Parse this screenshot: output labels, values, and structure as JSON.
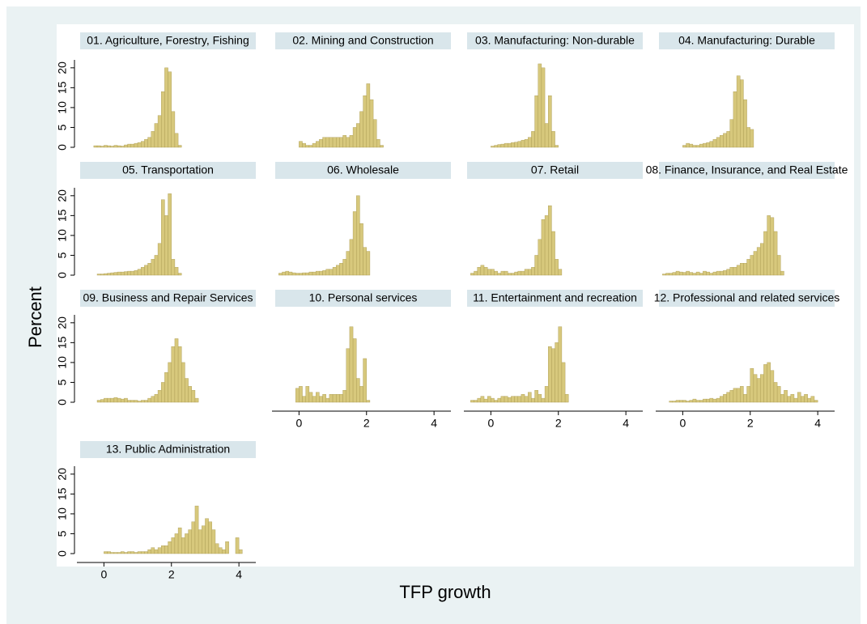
{
  "chart_data": {
    "type": "histogram",
    "xlabel": "TFP growth",
    "ylabel": "Percent",
    "color": "#d7c87c",
    "edgecolor": "#a8984f",
    "xlim": [
      -0.8,
      4.5
    ],
    "xticks": [
      0,
      2,
      4
    ],
    "ylim": [
      0,
      22
    ],
    "yticks": [
      0,
      5,
      10,
      15,
      20
    ],
    "bins": [
      -0.6,
      -0.5,
      -0.4,
      -0.3,
      -0.2,
      -0.1,
      0,
      0.1,
      0.2,
      0.3,
      0.4,
      0.5,
      0.6,
      0.7,
      0.8,
      0.9,
      1,
      1.1,
      1.2,
      1.3,
      1.4,
      1.5,
      1.6,
      1.7,
      1.8,
      1.9,
      2,
      2.1,
      2.2,
      2.3,
      2.4,
      2.5,
      2.6,
      2.7,
      2.8,
      2.9,
      3,
      3.1,
      3.2,
      3.3,
      3.4,
      3.5,
      3.6,
      3.7,
      3.8,
      3.9,
      4,
      4.1,
      4.2
    ],
    "panels": [
      {
        "title": "01. Agriculture, Forestry, Fishing",
        "values": [
          0,
          0,
          0,
          0.4,
          0.4,
          0.3,
          0.5,
          0.4,
          0.3,
          0.5,
          0.4,
          0.3,
          0.6,
          0.8,
          0.8,
          1,
          1.2,
          1.5,
          2,
          2.5,
          4,
          6,
          8,
          14,
          20,
          19,
          9,
          3.5,
          0.5,
          0,
          0,
          0,
          0,
          0,
          0,
          0,
          0,
          0,
          0,
          0,
          0,
          0,
          0,
          0,
          0,
          0,
          0,
          0
        ]
      },
      {
        "title": "02. Mining and Construction",
        "values": [
          0,
          0,
          0,
          0,
          0,
          0,
          1.5,
          1,
          0.5,
          0.5,
          1,
          1.5,
          2,
          2.5,
          2.5,
          2.5,
          2.5,
          2.5,
          2.5,
          3,
          2.5,
          3,
          5,
          6,
          9,
          13,
          16,
          12,
          7,
          2,
          0.5,
          0,
          0,
          0,
          0,
          0,
          0,
          0,
          0,
          0,
          0,
          0,
          0,
          0,
          0,
          0,
          0,
          0
        ]
      },
      {
        "title": "03. Manufacturing: Non-durable",
        "values": [
          0,
          0,
          0,
          0,
          0,
          0,
          0.3,
          0.5,
          0.7,
          0.8,
          1,
          1,
          1.2,
          1.3,
          1.5,
          1.8,
          2,
          2.5,
          4,
          13,
          21,
          20,
          6,
          13,
          4,
          0.5,
          0,
          0,
          0,
          0,
          0,
          0,
          0,
          0,
          0,
          0,
          0,
          0,
          0,
          0,
          0,
          0,
          0,
          0,
          0,
          0,
          0,
          0
        ]
      },
      {
        "title": "04. Manufacturing: Durable",
        "values": [
          0,
          0,
          0,
          0,
          0,
          0,
          0.5,
          1,
          0.8,
          0.5,
          0.5,
          0.8,
          1,
          1.2,
          1.5,
          2,
          2.5,
          3,
          3.5,
          4,
          7,
          14,
          18,
          17,
          12,
          5,
          4.5,
          0,
          0,
          0,
          0,
          0,
          0,
          0,
          0,
          0,
          0,
          0,
          0,
          0,
          0,
          0,
          0,
          0,
          0,
          0,
          0,
          0
        ]
      },
      {
        "title": "05. Transportation",
        "values": [
          0,
          0,
          0,
          0,
          0.3,
          0.3,
          0.4,
          0.5,
          0.6,
          0.7,
          0.8,
          0.8,
          0.9,
          1,
          1,
          1.2,
          1.5,
          2,
          2.5,
          3,
          4,
          5,
          8,
          19,
          15,
          20.5,
          4,
          2,
          0.5,
          0,
          0,
          0,
          0,
          0,
          0,
          0,
          0,
          0,
          0,
          0,
          0,
          0,
          0,
          0,
          0,
          0,
          0,
          0
        ]
      },
      {
        "title": "06. Wholesale",
        "values": [
          0.5,
          0.8,
          1,
          0.8,
          0.6,
          0.5,
          0.5,
          0.6,
          0.6,
          0.8,
          0.8,
          1,
          1,
          1.2,
          1.5,
          1.5,
          2,
          2.5,
          3,
          4,
          6,
          9,
          16,
          20,
          13,
          7,
          6,
          0,
          0,
          0,
          0,
          0,
          0,
          0,
          0,
          0,
          0,
          0,
          0,
          0,
          0,
          0,
          0,
          0,
          0,
          0,
          0,
          0
        ]
      },
      {
        "title": "07. Retail",
        "values": [
          0.5,
          1,
          2,
          2.5,
          2,
          1.5,
          1.5,
          1,
          0.5,
          1,
          1,
          0.5,
          0.5,
          0.8,
          1,
          1,
          1.5,
          1.5,
          2,
          5,
          9,
          14,
          15,
          17.5,
          11,
          4,
          1.5,
          0,
          0,
          0,
          0,
          0,
          0,
          0,
          0,
          0,
          0,
          0,
          0,
          0,
          0,
          0,
          0,
          0,
          0,
          0,
          0,
          0
        ]
      },
      {
        "title": "08. Finance, Insurance, and Real Estate",
        "values": [
          0.3,
          0.5,
          0.5,
          0.7,
          1,
          0.8,
          0.7,
          1,
          0.7,
          0.5,
          0.8,
          0.5,
          1,
          0.8,
          0.5,
          0.8,
          1,
          1,
          1.2,
          1.5,
          2,
          2,
          2.5,
          3,
          3,
          4,
          5,
          6,
          7,
          8,
          11,
          15,
          14.5,
          11,
          5,
          1,
          0,
          0,
          0,
          0,
          0,
          0,
          0,
          0,
          0,
          0,
          0,
          0
        ]
      },
      {
        "title": "09. Business and Repair Services",
        "values": [
          0,
          0,
          0,
          0,
          0.5,
          0.7,
          1,
          1,
          1,
          1.2,
          1,
          0.8,
          1,
          0.5,
          0.5,
          0.5,
          0.3,
          0.5,
          0.5,
          1,
          1.5,
          2,
          3,
          5,
          7.5,
          10,
          14,
          16,
          14,
          10,
          6,
          4,
          3,
          1,
          0,
          0,
          0,
          0,
          0,
          0,
          0,
          0,
          0,
          0,
          0,
          0,
          0,
          0
        ]
      },
      {
        "title": "10. Personal services",
        "values": [
          0,
          0,
          0,
          0,
          0,
          3.5,
          4,
          1.5,
          4,
          2.5,
          1.5,
          2.5,
          1.5,
          2,
          1,
          2,
          2,
          2,
          2,
          3,
          13.5,
          19,
          16,
          6,
          4,
          11,
          0.5,
          0,
          0,
          0,
          0,
          0,
          0,
          0,
          0,
          0,
          0,
          0,
          0,
          0,
          0,
          0,
          0,
          0,
          0,
          0,
          0,
          0
        ]
      },
      {
        "title": "11. Entertainment and recreation",
        "values": [
          0.5,
          0.5,
          1,
          1.5,
          0.8,
          1.5,
          1,
          0.5,
          1,
          1.5,
          1.5,
          1.2,
          1.5,
          1.5,
          1.5,
          2,
          1.5,
          2.5,
          1,
          3,
          2,
          1,
          4,
          14,
          13.5,
          15,
          19,
          10,
          2,
          0,
          0,
          0,
          0,
          0,
          0,
          0,
          0,
          0,
          0,
          0,
          0,
          0,
          0,
          0,
          0,
          0,
          0,
          0
        ]
      },
      {
        "title": "12. Professional and related services",
        "values": [
          0,
          0,
          0.3,
          0.3,
          0.5,
          0.5,
          0.5,
          0.3,
          0.5,
          0.8,
          0.5,
          0.5,
          0.8,
          0.8,
          1,
          0.8,
          1,
          1.5,
          2,
          2.5,
          3,
          3.5,
          3.5,
          4,
          2,
          4,
          8.5,
          7,
          6,
          7,
          9.5,
          10,
          8,
          5,
          4,
          2,
          3,
          1.5,
          2,
          1,
          2.5,
          1.5,
          2,
          1,
          1.5,
          0.5,
          0,
          0
        ]
      },
      {
        "title": "13. Public Administration",
        "values": [
          0,
          0,
          0,
          0,
          0,
          0,
          0.5,
          0.5,
          0.3,
          0.3,
          0.3,
          0.5,
          0.3,
          0.5,
          0.5,
          0.3,
          0.5,
          0.5,
          0.5,
          1,
          1.5,
          1,
          1.5,
          2,
          2,
          3,
          4,
          5,
          6.5,
          4,
          5,
          6,
          8,
          12,
          6,
          7,
          8.8,
          8,
          6,
          2.5,
          1.5,
          1,
          3,
          0,
          0,
          4,
          1,
          0
        ]
      }
    ]
  }
}
